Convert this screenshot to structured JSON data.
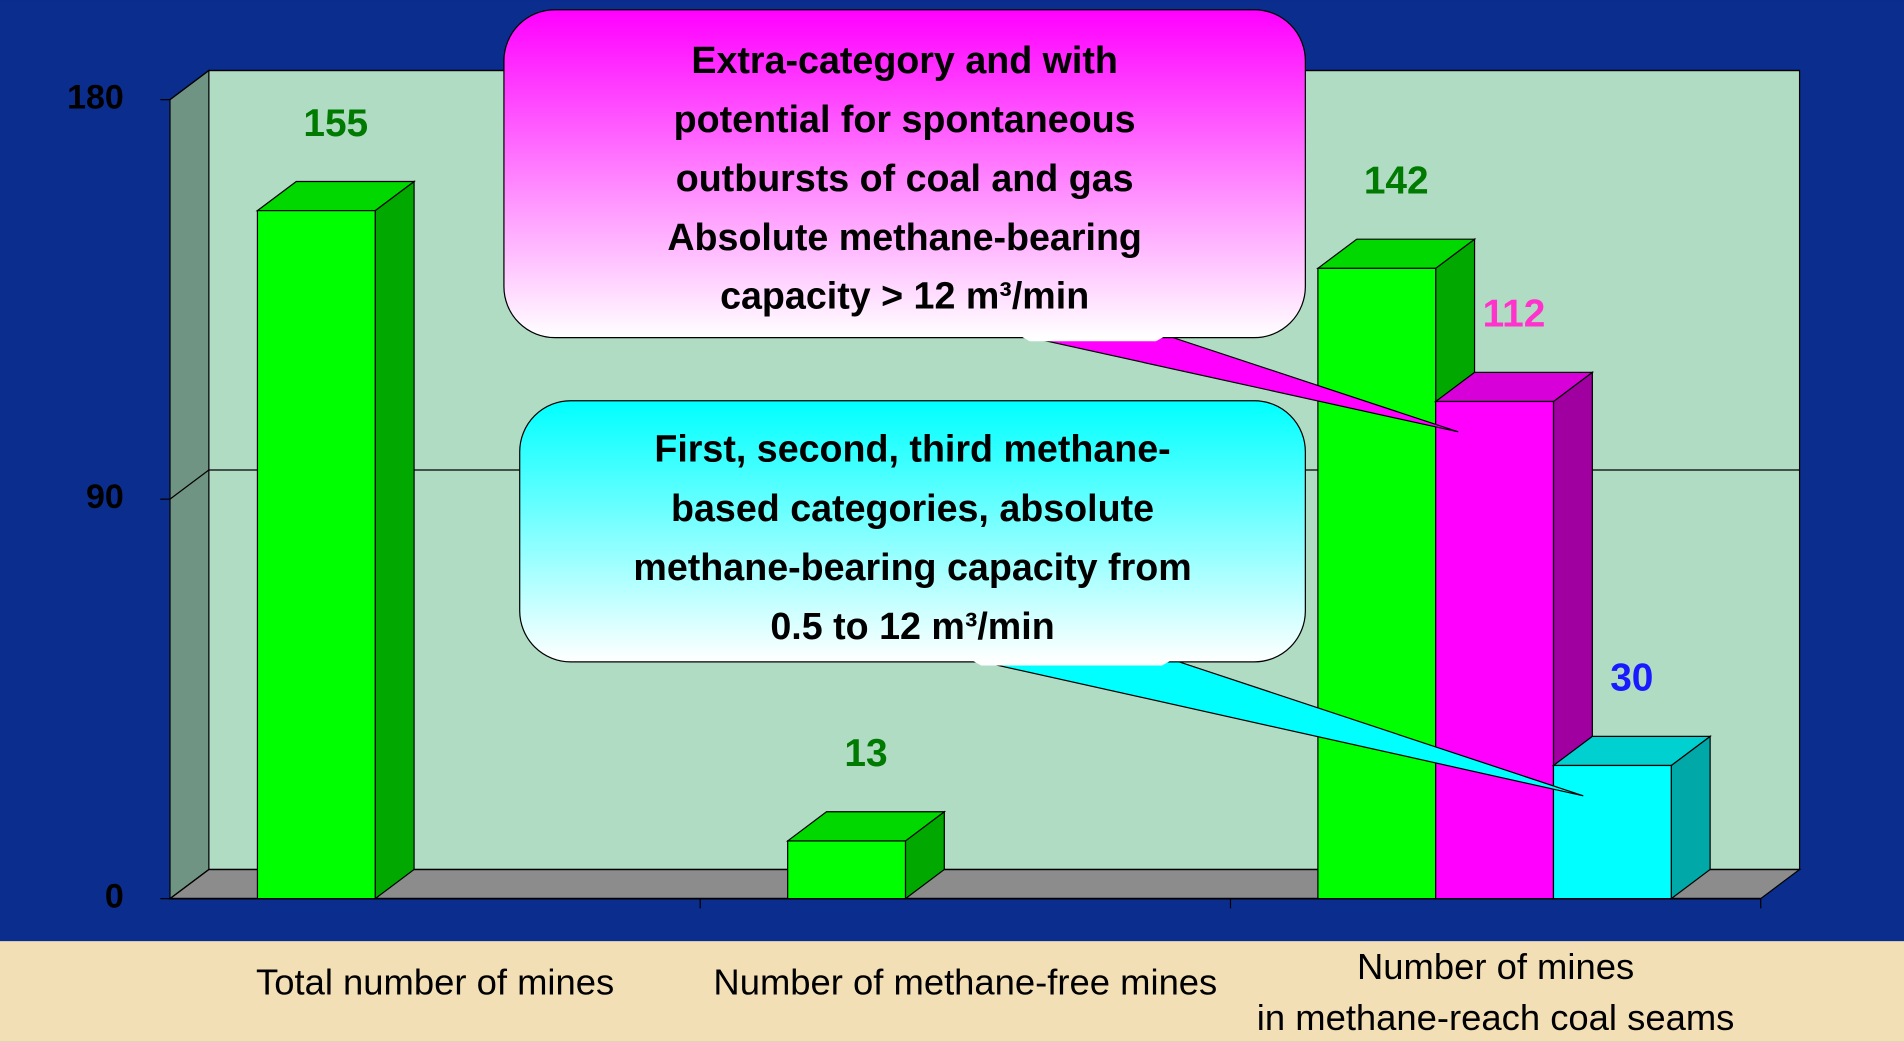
{
  "chart_data": {
    "type": "bar3d",
    "categories": [
      "Total number of mines",
      "Number of methane-free mines",
      "Number of mines\nin methane-reach coal seams"
    ],
    "series": [
      {
        "color": "#00ff00",
        "side_color": "#00a800",
        "top_color": "#00d800",
        "label_color": "#007a00",
        "values": [
          155,
          13,
          142
        ]
      },
      {
        "color": "#ff00ff",
        "side_color": "#a000a0",
        "top_color": "#d800d8",
        "label_color": "#ff33cc",
        "values": [
          null,
          null,
          112
        ]
      },
      {
        "color": "#00ffff",
        "side_color": "#00a8a8",
        "top_color": "#00d0d0",
        "label_color": "#1a1aff",
        "values": [
          null,
          null,
          30
        ]
      }
    ],
    "ylim": [
      0,
      180
    ],
    "yticks": [
      0,
      90,
      180
    ],
    "grid": true,
    "annotations": [
      {
        "lines": [
          "Extra-category and with",
          "potential  for spontaneous",
          "outbursts of coal and gas",
          "Absolute  methane-bearing",
          "capacity > 12 m³/min"
        ],
        "color": "#ff00ff",
        "series": 1
      },
      {
        "lines": [
          "First, second, third methane-",
          "based categories, absolute",
          "methane-bearing capacity from",
          "0.5 to 12 m³/min"
        ],
        "color": "#00ffff",
        "series": 2
      }
    ]
  }
}
